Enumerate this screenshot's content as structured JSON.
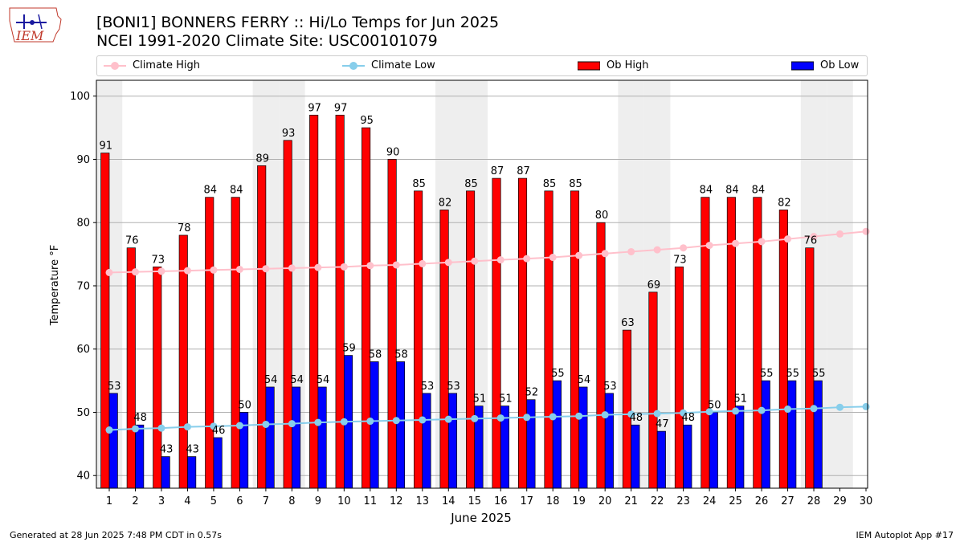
{
  "header": {
    "title_line1": "[BONI1] BONNERS FERRY :: Hi/Lo Temps for Jun 2025",
    "title_line2": "NCEI 1991-2020 Climate Site: USC00101079",
    "logo_text": "IEM"
  },
  "legend": {
    "climate_high": "Climate High",
    "climate_low": "Climate Low",
    "ob_high": "Ob High",
    "ob_low": "Ob Low"
  },
  "colors": {
    "ob_high": "#ff0000",
    "ob_low": "#0000ff",
    "climate_high": "#ffc0cb",
    "climate_low": "#87ceeb",
    "weekend_shade": "#eeeeee"
  },
  "footer": {
    "generated": "Generated at 28 Jun 2025 7:48 PM CDT in 0.57s",
    "app": "IEM Autoplot App #17"
  },
  "chart_data": {
    "type": "bar",
    "title": "[BONI1] BONNERS FERRY :: Hi/Lo Temps for Jun 2025",
    "subtitle": "NCEI 1991-2020 Climate Site: USC00101079",
    "xlabel": "June 2025",
    "ylabel": "Temperature °F",
    "ylim": [
      38,
      102.5
    ],
    "yticks": [
      40,
      50,
      60,
      70,
      80,
      90,
      100
    ],
    "grid": "horizontal",
    "legend_position": "top",
    "categories": [
      "1",
      "2",
      "3",
      "4",
      "5",
      "6",
      "7",
      "8",
      "9",
      "10",
      "11",
      "12",
      "13",
      "14",
      "15",
      "16",
      "17",
      "18",
      "19",
      "20",
      "21",
      "22",
      "23",
      "24",
      "25",
      "26",
      "27",
      "28",
      "29",
      "30"
    ],
    "shaded_days": [
      1,
      7,
      8,
      14,
      15,
      21,
      22,
      28,
      29
    ],
    "series": [
      {
        "name": "Ob High",
        "kind": "bar",
        "values": [
          91,
          76,
          73,
          78,
          84,
          84,
          89,
          93,
          97,
          97,
          95,
          90,
          85,
          82,
          85,
          87,
          87,
          85,
          85,
          80,
          63,
          69,
          73,
          84,
          84,
          84,
          82,
          76,
          null,
          null
        ]
      },
      {
        "name": "Ob Low",
        "kind": "bar",
        "values": [
          53,
          48,
          43,
          43,
          46,
          50,
          54,
          54,
          54,
          59,
          58,
          58,
          53,
          53,
          51,
          51,
          52,
          55,
          54,
          53,
          48,
          47,
          48,
          50,
          51,
          55,
          55,
          55,
          null,
          null
        ]
      },
      {
        "name": "Climate High",
        "kind": "line",
        "values": [
          72.1,
          72.2,
          72.3,
          72.4,
          72.5,
          72.6,
          72.7,
          72.8,
          72.9,
          73.0,
          73.2,
          73.3,
          73.5,
          73.7,
          73.9,
          74.1,
          74.3,
          74.5,
          74.8,
          75.1,
          75.4,
          75.7,
          76.0,
          76.4,
          76.7,
          77.0,
          77.4,
          77.8,
          78.2,
          78.6
        ]
      },
      {
        "name": "Climate Low",
        "kind": "line",
        "values": [
          47.2,
          47.4,
          47.5,
          47.7,
          47.8,
          47.9,
          48.1,
          48.2,
          48.4,
          48.5,
          48.6,
          48.7,
          48.8,
          48.9,
          49.0,
          49.1,
          49.2,
          49.3,
          49.4,
          49.6,
          49.7,
          49.8,
          49.9,
          50.1,
          50.2,
          50.3,
          50.5,
          50.6,
          50.8,
          50.9
        ]
      }
    ]
  }
}
